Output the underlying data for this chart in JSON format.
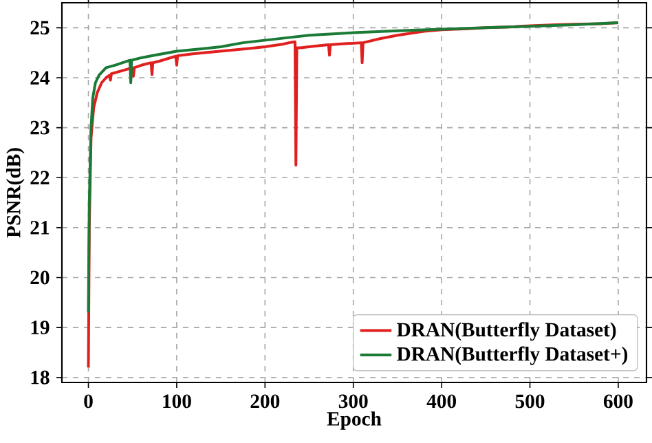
{
  "chart_data": {
    "type": "line",
    "xlabel": "Epoch",
    "ylabel": "PSNR(dB)",
    "xlim": [
      -30,
      632
    ],
    "ylim": [
      17.9,
      25.5
    ],
    "xticks": [
      0,
      100,
      200,
      300,
      400,
      500,
      600
    ],
    "yticks": [
      18,
      19,
      20,
      21,
      22,
      23,
      24,
      25
    ],
    "grid": true,
    "legend": "bottom right",
    "line_style": "solid",
    "marker": "none",
    "series": [
      {
        "name": "DRAN(Butterfly Dataset)",
        "color": "#e0201e",
        "x": [
          0,
          1,
          3,
          6,
          10,
          15,
          20,
          24,
          25,
          26,
          30,
          40,
          50,
          51,
          52,
          60,
          71,
          72,
          73,
          80,
          99,
          100,
          101,
          120,
          150,
          180,
          200,
          220,
          230,
          234,
          235,
          236,
          240,
          255,
          272,
          273,
          274,
          290,
          309,
          310,
          311,
          330,
          350,
          380,
          400,
          430,
          450,
          480,
          500,
          530,
          550,
          580,
          600
        ],
        "values": [
          18.2,
          21.0,
          22.8,
          23.4,
          23.7,
          23.9,
          24.0,
          24.05,
          23.95,
          24.08,
          24.1,
          24.15,
          24.2,
          24.03,
          24.2,
          24.25,
          24.3,
          24.06,
          24.3,
          24.33,
          24.43,
          24.25,
          24.44,
          24.48,
          24.53,
          24.58,
          24.62,
          24.67,
          24.71,
          24.72,
          22.25,
          24.6,
          24.6,
          24.63,
          24.66,
          24.45,
          24.66,
          24.68,
          24.7,
          24.3,
          24.7,
          24.78,
          24.85,
          24.93,
          24.96,
          24.98,
          25.0,
          25.02,
          25.04,
          25.06,
          25.07,
          25.08,
          25.1
        ]
      },
      {
        "name": "DRAN(Butterfly Dataset+)",
        "color": "#1b7a36",
        "x": [
          0,
          1,
          3,
          5,
          8,
          12,
          20,
          30,
          47,
          48,
          49,
          60,
          75,
          100,
          130,
          150,
          175,
          200,
          225,
          250,
          300,
          350,
          400,
          450,
          500,
          550,
          600
        ],
        "values": [
          19.3,
          21.5,
          23.0,
          23.6,
          23.9,
          24.05,
          24.2,
          24.25,
          24.35,
          23.9,
          24.35,
          24.4,
          24.45,
          24.53,
          24.58,
          24.62,
          24.7,
          24.75,
          24.8,
          24.85,
          24.9,
          24.94,
          24.97,
          25.0,
          25.03,
          25.06,
          25.1
        ]
      }
    ]
  }
}
